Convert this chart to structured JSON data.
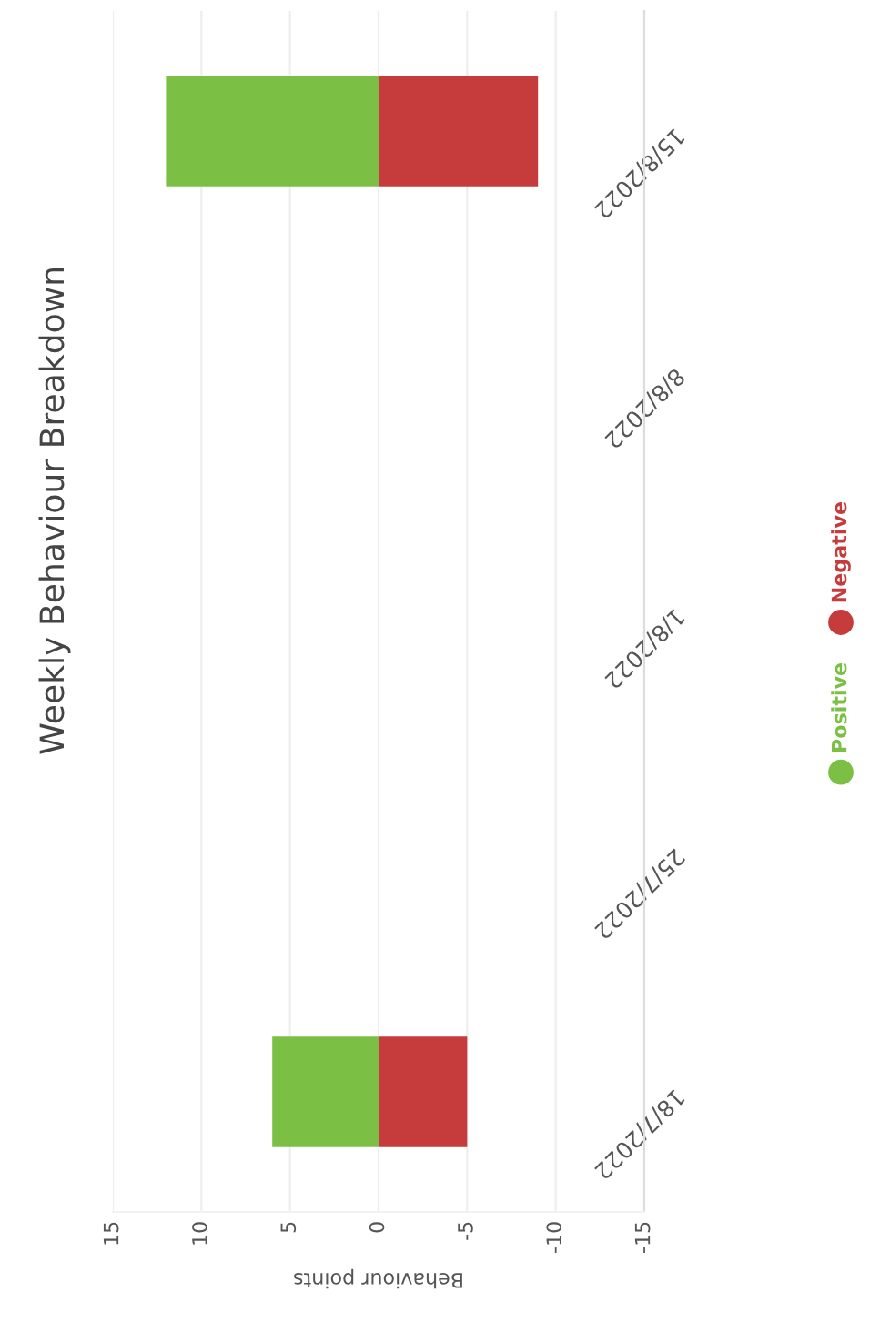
{
  "chart_data": {
    "type": "bar",
    "orientation": "horizontal",
    "stacked": true,
    "title": "Weekly Behaviour Breakdown",
    "xlabel": "Behaviour points",
    "categories": [
      "15/8/2022",
      "8/8/2022",
      "1/8/2022",
      "25/7/2022",
      "18/7/2022"
    ],
    "series": [
      {
        "name": "Positive",
        "color": "#7cbf45",
        "values": [
          12,
          0,
          0,
          0,
          6
        ]
      },
      {
        "name": "Negative",
        "color": "#c63b3b",
        "values": [
          -9,
          0,
          0,
          0,
          -5
        ]
      }
    ],
    "xlim": [
      15,
      -15
    ],
    "xticks": [
      15,
      10,
      5,
      0,
      -5,
      -10,
      -15
    ],
    "grid": "x",
    "legend": "right",
    "marker": "circle"
  }
}
